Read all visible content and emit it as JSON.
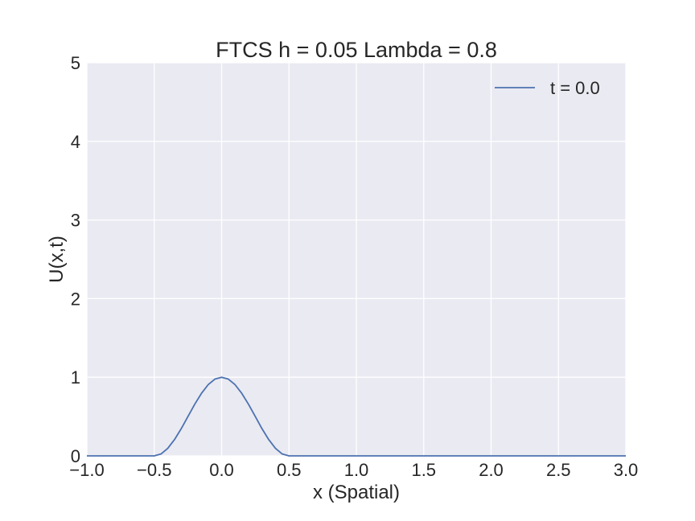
{
  "chart_data": {
    "type": "line",
    "title": "FTCS h = 0.05 Lambda = 0.8",
    "xlabel": "x (Spatial)",
    "ylabel": "U(x,t)",
    "xlim": [
      -1.0,
      3.0
    ],
    "ylim": [
      0,
      5
    ],
    "xticks": [
      -1.0,
      -0.5,
      0.0,
      0.5,
      1.0,
      1.5,
      2.0,
      2.5,
      3.0
    ],
    "xtick_labels": [
      "−1.0",
      "−0.5",
      "0.0",
      "0.5",
      "1.0",
      "1.5",
      "2.0",
      "2.5",
      "3.0"
    ],
    "yticks": [
      0,
      1,
      2,
      3,
      4,
      5
    ],
    "ytick_labels": [
      "0",
      "1",
      "2",
      "3",
      "4",
      "5"
    ],
    "grid": true,
    "legend_position": "top-right",
    "series": [
      {
        "name": "t = 0.0",
        "color": "#4c72b0",
        "x": [
          -1.0,
          -0.95,
          -0.9,
          -0.85,
          -0.8,
          -0.75,
          -0.7,
          -0.65,
          -0.6,
          -0.55,
          -0.5,
          -0.45,
          -0.4,
          -0.35,
          -0.3,
          -0.25,
          -0.2,
          -0.15,
          -0.1,
          -0.05,
          0.0,
          0.05,
          0.1,
          0.15,
          0.2,
          0.25,
          0.3,
          0.35,
          0.4,
          0.45,
          0.5,
          0.55,
          0.6,
          0.7,
          0.8,
          1.0,
          1.5,
          2.0,
          2.5,
          3.0
        ],
        "y": [
          0,
          0,
          0,
          0,
          0,
          0,
          0,
          0,
          0,
          0,
          0,
          0.024,
          0.095,
          0.206,
          0.345,
          0.5,
          0.655,
          0.794,
          0.905,
          0.976,
          1.0,
          0.976,
          0.905,
          0.794,
          0.655,
          0.5,
          0.345,
          0.206,
          0.095,
          0.024,
          0,
          0,
          0,
          0,
          0,
          0,
          0,
          0,
          0,
          0
        ]
      }
    ]
  },
  "colors": {
    "plot_background": "#eaeaf2",
    "grid": "#ffffff",
    "text": "#262626"
  }
}
